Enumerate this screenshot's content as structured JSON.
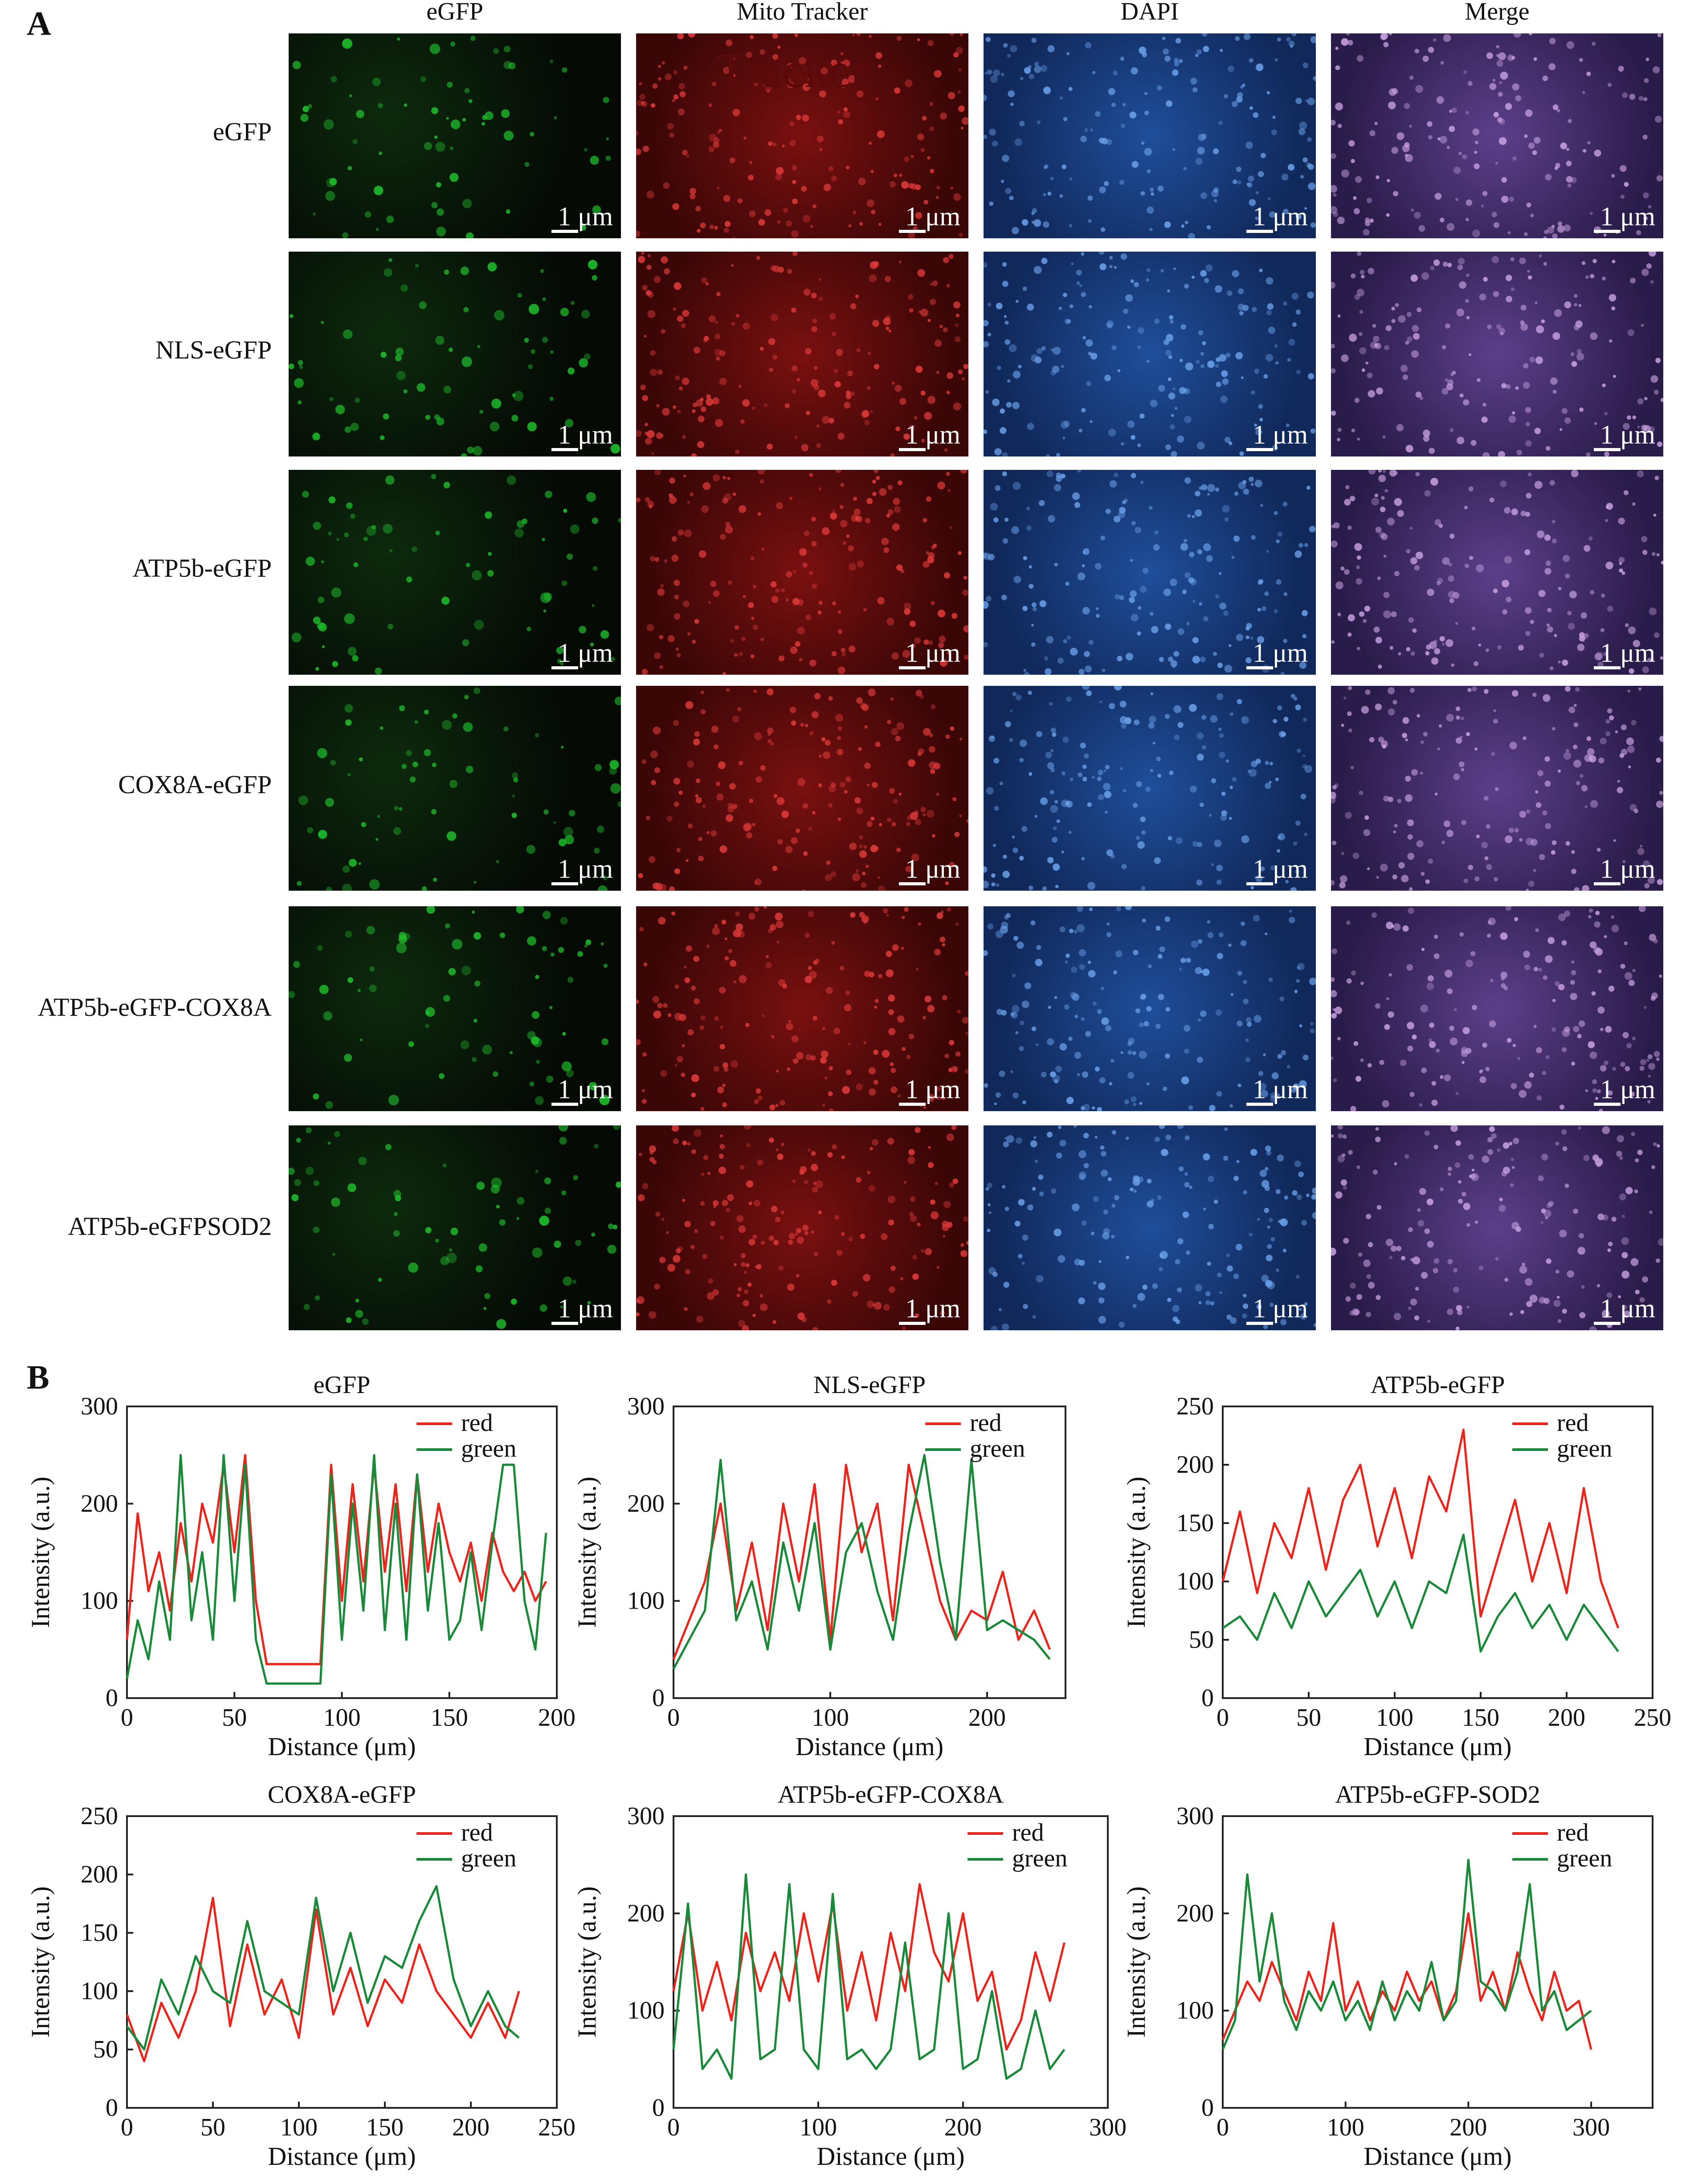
{
  "panel_a": {
    "letter": "A",
    "columns": [
      "eGFP",
      "Mito Tracker",
      "DAPI",
      "Merge"
    ],
    "rows": [
      "eGFP",
      "NLS-eGFP",
      "ATP5b-eGFP",
      "COX8A-eGFP",
      "ATP5b-eGFP-COX8A",
      "ATP5b-eGFPSOD2"
    ],
    "scale_bar": "1 μm",
    "overlay_text": "Tracker",
    "channel_colors": {
      "egfp": "#1fbf2c",
      "mito": "#c81e1e",
      "dapi": "#2f6fd0",
      "merge": "#8a5ab8"
    }
  },
  "panel_b": {
    "letter": "B"
  },
  "chart_data": [
    {
      "type": "line",
      "title": "eGFP",
      "xlabel": "Distance (μm)",
      "ylabel": "Intensity (a.u.)",
      "xlim": [
        0,
        200
      ],
      "ylim": [
        0,
        300
      ],
      "xticks": [
        0,
        50,
        100,
        150,
        200
      ],
      "yticks": [
        0,
        100,
        200,
        300
      ],
      "legend_position": "top-right",
      "x": [
        0,
        5,
        10,
        15,
        20,
        25,
        30,
        35,
        40,
        45,
        50,
        55,
        60,
        65,
        70,
        75,
        80,
        85,
        90,
        95,
        100,
        105,
        110,
        115,
        120,
        125,
        130,
        135,
        140,
        145,
        150,
        155,
        160,
        165,
        170,
        175,
        180,
        185,
        190,
        195
      ],
      "series": [
        {
          "name": "red",
          "color": "#e8261d",
          "values": [
            60,
            190,
            110,
            150,
            90,
            180,
            120,
            200,
            160,
            240,
            150,
            250,
            100,
            35,
            35,
            35,
            35,
            35,
            35,
            240,
            100,
            220,
            120,
            240,
            130,
            220,
            110,
            230,
            130,
            200,
            150,
            120,
            160,
            100,
            170,
            130,
            110,
            130,
            100,
            120
          ]
        },
        {
          "name": "green",
          "color": "#1a8a3a",
          "values": [
            20,
            80,
            40,
            120,
            60,
            250,
            80,
            150,
            60,
            250,
            100,
            240,
            60,
            15,
            15,
            15,
            15,
            15,
            15,
            230,
            60,
            200,
            90,
            250,
            70,
            200,
            60,
            230,
            90,
            180,
            60,
            80,
            150,
            70,
            160,
            240,
            240,
            100,
            50,
            170
          ]
        }
      ]
    },
    {
      "type": "line",
      "title": "NLS-eGFP",
      "xlabel": "Distance (μm)",
      "ylabel": "Intensity (a.u.)",
      "xlim": [
        0,
        250
      ],
      "ylim": [
        0,
        300
      ],
      "xticks": [
        0,
        100,
        200
      ],
      "yticks": [
        0,
        100,
        200,
        300
      ],
      "legend_position": "top-right",
      "x": [
        0,
        10,
        20,
        30,
        40,
        50,
        60,
        70,
        80,
        90,
        100,
        110,
        120,
        130,
        140,
        150,
        160,
        170,
        180,
        190,
        200,
        210,
        220,
        230,
        240
      ],
      "series": [
        {
          "name": "red",
          "color": "#e8261d",
          "values": [
            40,
            80,
            120,
            200,
            90,
            160,
            70,
            200,
            120,
            220,
            60,
            240,
            150,
            200,
            80,
            240,
            170,
            100,
            60,
            90,
            80,
            130,
            60,
            90,
            50
          ]
        },
        {
          "name": "green",
          "color": "#1a8a3a",
          "values": [
            30,
            60,
            90,
            245,
            80,
            120,
            50,
            160,
            90,
            180,
            50,
            150,
            180,
            110,
            60,
            170,
            250,
            140,
            60,
            245,
            70,
            80,
            70,
            60,
            40
          ]
        }
      ]
    },
    {
      "type": "line",
      "title": "ATP5b-eGFP",
      "xlabel": "Distance (μm)",
      "ylabel": "Intensity (a.u.)",
      "xlim": [
        0,
        250
      ],
      "ylim": [
        0,
        250
      ],
      "xticks": [
        0,
        50,
        100,
        150,
        200,
        250
      ],
      "yticks": [
        0,
        50,
        100,
        150,
        200,
        250
      ],
      "legend_position": "top-right",
      "x": [
        0,
        10,
        20,
        30,
        40,
        50,
        60,
        70,
        80,
        90,
        100,
        110,
        120,
        130,
        140,
        150,
        160,
        170,
        180,
        190,
        200,
        210,
        220,
        230
      ],
      "series": [
        {
          "name": "red",
          "color": "#e8261d",
          "values": [
            100,
            160,
            90,
            150,
            120,
            180,
            110,
            170,
            200,
            130,
            180,
            120,
            190,
            160,
            230,
            70,
            120,
            170,
            100,
            150,
            90,
            180,
            100,
            60
          ]
        },
        {
          "name": "green",
          "color": "#1a8a3a",
          "values": [
            60,
            70,
            50,
            90,
            60,
            100,
            70,
            90,
            110,
            70,
            100,
            60,
            100,
            90,
            140,
            40,
            70,
            90,
            60,
            80,
            50,
            80,
            60,
            40
          ]
        }
      ]
    },
    {
      "type": "line",
      "title": "COX8A-eGFP",
      "xlabel": "Distance (μm)",
      "ylabel": "Intensity (a.u.)",
      "xlim": [
        0,
        250
      ],
      "ylim": [
        0,
        250
      ],
      "xticks": [
        0,
        50,
        100,
        150,
        200,
        250
      ],
      "yticks": [
        0,
        50,
        100,
        150,
        200,
        250
      ],
      "legend_position": "top-right",
      "x": [
        0,
        10,
        20,
        30,
        40,
        50,
        60,
        70,
        80,
        90,
        100,
        110,
        120,
        130,
        140,
        150,
        160,
        170,
        180,
        190,
        200,
        210,
        220,
        228
      ],
      "series": [
        {
          "name": "red",
          "color": "#e8261d",
          "values": [
            80,
            40,
            90,
            60,
            100,
            180,
            70,
            140,
            80,
            110,
            60,
            170,
            80,
            120,
            70,
            110,
            90,
            140,
            100,
            80,
            60,
            90,
            60,
            100
          ]
        },
        {
          "name": "green",
          "color": "#1a8a3a",
          "values": [
            70,
            50,
            110,
            80,
            130,
            100,
            90,
            160,
            100,
            90,
            80,
            180,
            100,
            150,
            90,
            130,
            120,
            160,
            190,
            110,
            70,
            100,
            70,
            60
          ]
        }
      ]
    },
    {
      "type": "line",
      "title": "ATP5b-eGFP-COX8A",
      "xlabel": "Distance (μm)",
      "ylabel": "Intensity (a.u.)",
      "xlim": [
        0,
        300
      ],
      "ylim": [
        0,
        300
      ],
      "xticks": [
        0,
        100,
        200,
        300
      ],
      "yticks": [
        0,
        100,
        200,
        300
      ],
      "legend_position": "top-right",
      "x": [
        0,
        10,
        20,
        30,
        40,
        50,
        60,
        70,
        80,
        90,
        100,
        110,
        120,
        130,
        140,
        150,
        160,
        170,
        180,
        190,
        200,
        210,
        220,
        230,
        240,
        250,
        260,
        270
      ],
      "series": [
        {
          "name": "red",
          "color": "#e8261d",
          "values": [
            120,
            200,
            100,
            150,
            90,
            180,
            120,
            160,
            110,
            200,
            130,
            210,
            100,
            160,
            90,
            180,
            120,
            230,
            160,
            130,
            200,
            110,
            140,
            60,
            90,
            160,
            110,
            170
          ]
        },
        {
          "name": "green",
          "color": "#1a8a3a",
          "values": [
            60,
            210,
            40,
            60,
            30,
            240,
            50,
            60,
            230,
            60,
            40,
            220,
            50,
            60,
            40,
            60,
            170,
            50,
            60,
            200,
            40,
            50,
            120,
            30,
            40,
            100,
            40,
            60
          ]
        }
      ]
    },
    {
      "type": "line",
      "title": "ATP5b-eGFP-SOD2",
      "xlabel": "Distance (μm)",
      "ylabel": "Intensity (a.u.)",
      "xlim": [
        0,
        350
      ],
      "ylim": [
        0,
        300
      ],
      "xticks": [
        0,
        100,
        200,
        300
      ],
      "yticks": [
        0,
        100,
        200,
        300
      ],
      "legend_position": "top-right",
      "x": [
        0,
        10,
        20,
        30,
        40,
        50,
        60,
        70,
        80,
        90,
        100,
        110,
        120,
        130,
        140,
        150,
        160,
        170,
        180,
        190,
        200,
        210,
        220,
        230,
        240,
        250,
        260,
        270,
        280,
        290,
        300
      ],
      "series": [
        {
          "name": "red",
          "color": "#e8261d",
          "values": [
            70,
            100,
            130,
            110,
            150,
            120,
            90,
            140,
            110,
            190,
            100,
            130,
            90,
            120,
            100,
            140,
            110,
            130,
            90,
            120,
            200,
            110,
            140,
            100,
            160,
            120,
            90,
            140,
            100,
            110,
            60
          ]
        },
        {
          "name": "green",
          "color": "#1a8a3a",
          "values": [
            60,
            90,
            240,
            130,
            200,
            110,
            80,
            120,
            100,
            130,
            90,
            110,
            80,
            130,
            90,
            120,
            100,
            150,
            90,
            110,
            255,
            130,
            120,
            100,
            140,
            230,
            100,
            120,
            80,
            90,
            100
          ]
        }
      ]
    }
  ]
}
